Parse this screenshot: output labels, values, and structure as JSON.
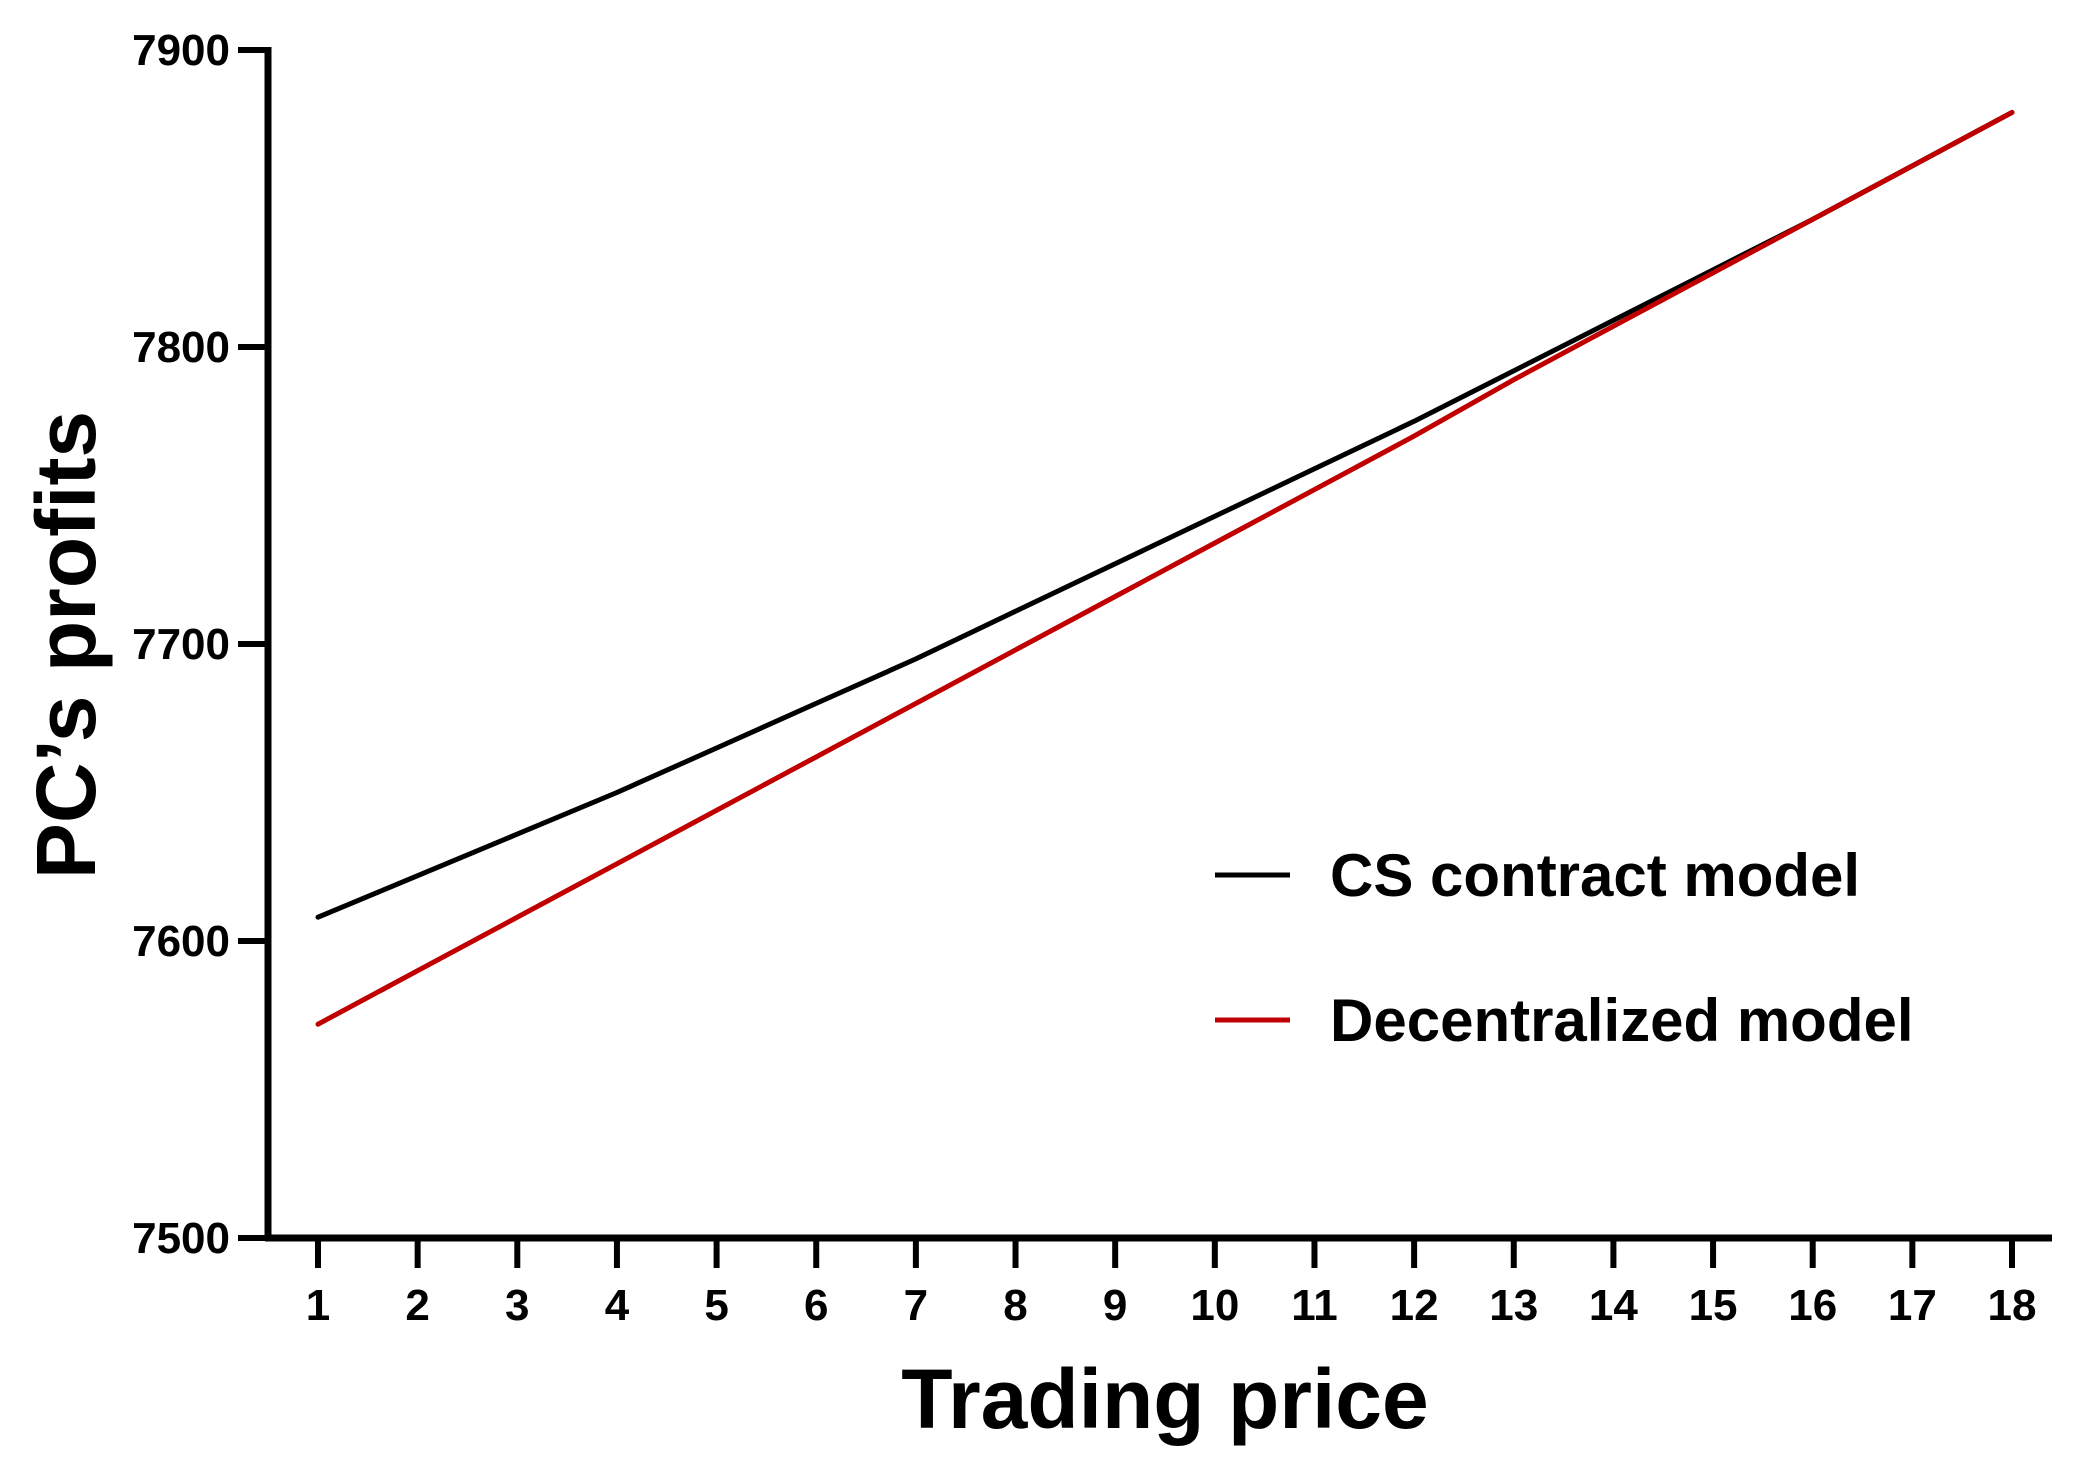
{
  "chart_data": {
    "type": "line",
    "title": "",
    "xlabel": "Trading price",
    "ylabel": "PC’s profits",
    "x": [
      1,
      2,
      3,
      4,
      5,
      6,
      7,
      8,
      9,
      10,
      11,
      12,
      13,
      14,
      15,
      16,
      17,
      18
    ],
    "xlim": [
      0.5,
      18.5
    ],
    "ylim": [
      7500,
      7900
    ],
    "yticks": [
      7500,
      7600,
      7700,
      7800,
      7900
    ],
    "xticks": [
      1,
      2,
      3,
      4,
      5,
      6,
      7,
      8,
      9,
      10,
      11,
      12,
      13,
      14,
      15,
      16,
      17,
      18
    ],
    "grid": false,
    "legend_position": "center-right",
    "series": [
      {
        "name": "CS contract model",
        "color": "#000000",
        "values": [
          7608,
          7622,
          7636,
          7650,
          7665,
          7680,
          7695,
          7711,
          7727,
          7743,
          7759,
          7775,
          7792,
          7809,
          7826,
          7843,
          7861,
          7879
        ]
      },
      {
        "name": "Decentralized model",
        "color": "#c00000",
        "values": [
          7572,
          7590,
          7608,
          7626,
          7644,
          7662,
          7680,
          7698,
          7716,
          7734,
          7752,
          7770,
          7789,
          7807,
          7825,
          7843,
          7861,
          7879
        ]
      }
    ]
  }
}
